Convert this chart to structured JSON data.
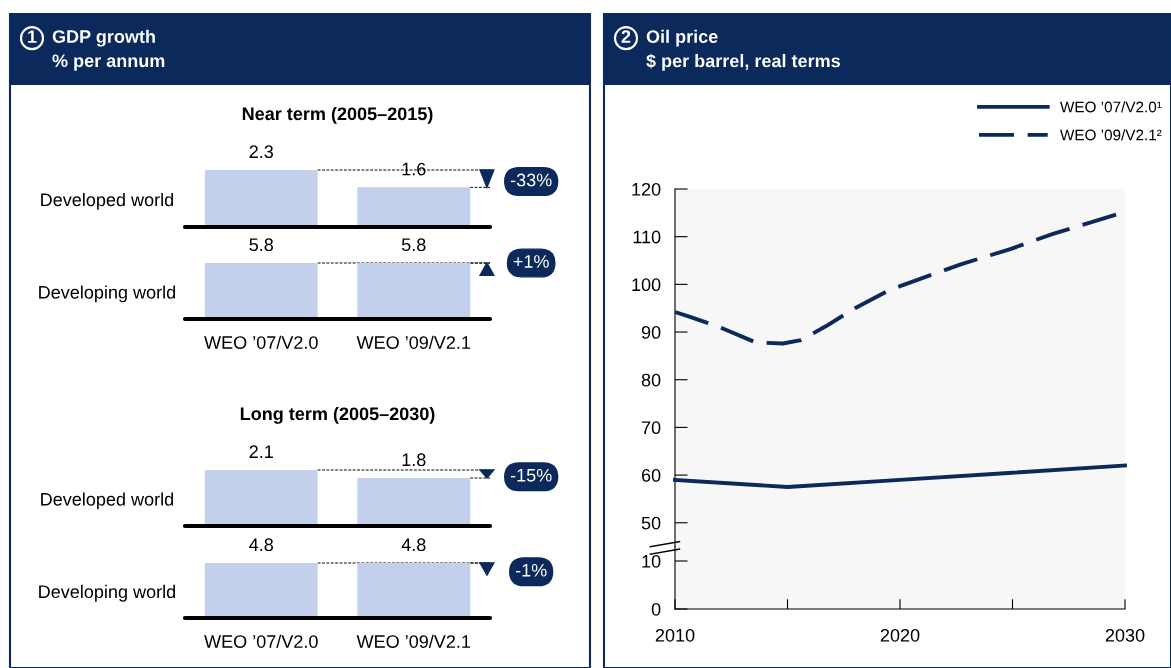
{
  "chart_data": [
    {
      "type": "other",
      "title": "GDP growth",
      "subtitle": "% per annum",
      "annotations": [
        "1"
      ]
    },
    {
      "type": "bar",
      "title": "Near term (2005–2015)",
      "ylabel": "Developed world",
      "categories": [
        null,
        null
      ],
      "values": [
        2.3,
        1.6
      ],
      "color": "#c3d0ec",
      "data_labels": true,
      "tick_labels": false,
      "annotations": [
        "-33%"
      ]
    },
    {
      "type": "bar",
      "ylabel": "Developing world",
      "categories": [
        "WEO ’07/V2.0",
        "WEO ’09/V2.1"
      ],
      "values": [
        5.8,
        5.8
      ],
      "color": "#c3d0ec",
      "data_labels": true,
      "tick_labels": "x",
      "annotations": [
        "+1%"
      ]
    },
    {
      "type": "bar",
      "title": "Long term (2005–2030)",
      "ylabel": "Developed world",
      "categories": [
        null,
        null
      ],
      "values": [
        2.1,
        1.8
      ],
      "color": "#c3d0ec",
      "data_labels": true,
      "tick_labels": false,
      "annotations": [
        "-15%"
      ]
    },
    {
      "type": "bar",
      "ylabel": "Developing world",
      "categories": [
        "WEO ’07/V2.0",
        "WEO ’09/V2.1"
      ],
      "values": [
        4.8,
        4.8
      ],
      "color": "#c3d0ec",
      "data_labels": true,
      "tick_labels": "x",
      "annotations": [
        "-1%"
      ]
    },
    {
      "type": "line",
      "title": "Oil price",
      "subtitle": "$ per barrel, real terms",
      "annotations": [
        "2"
      ],
      "legend": "top right",
      "grid": false,
      "tick_labels": "y",
      "xlim": [
        2010,
        2030
      ],
      "ylim": [
        45,
        120
      ],
      "yticks": [
        50,
        60,
        70,
        80,
        90,
        100,
        110,
        120
      ],
      "series": [
        {
          "name": "WEO ’07/V2.0¹",
          "color": "#0b2a5b",
          "line_style": "solid",
          "x": [
            2010,
            2015,
            2020,
            2025,
            2030
          ],
          "values": [
            59,
            57.5,
            59,
            60.5,
            62
          ]
        },
        {
          "name": "WEO ’09/V2.1²",
          "color": "#0b2a5b",
          "line_style": "dashed",
          "x": [
            2010,
            2010.6,
            2012,
            2013.6,
            2014.8,
            2015.6,
            2016.7,
            2018,
            2019.4,
            2020.1,
            2022.7,
            2024.9,
            2026.8,
            2030
          ],
          "values": [
            94.2,
            93.3,
            91,
            87.8,
            87.6,
            88.3,
            91.2,
            95,
            98.5,
            99.8,
            104.2,
            107.4,
            110.6,
            115.2
          ]
        }
      ]
    },
    {
      "type": "line",
      "xlim": [
        2010,
        2030
      ],
      "xticks": [
        2010,
        {
          "value": 2015,
          "label": null
        },
        2020,
        {
          "value": 2025,
          "label": null
        },
        2030
      ],
      "ylim": [
        0,
        13
      ],
      "yticks": [
        0,
        10
      ]
    }
  ]
}
